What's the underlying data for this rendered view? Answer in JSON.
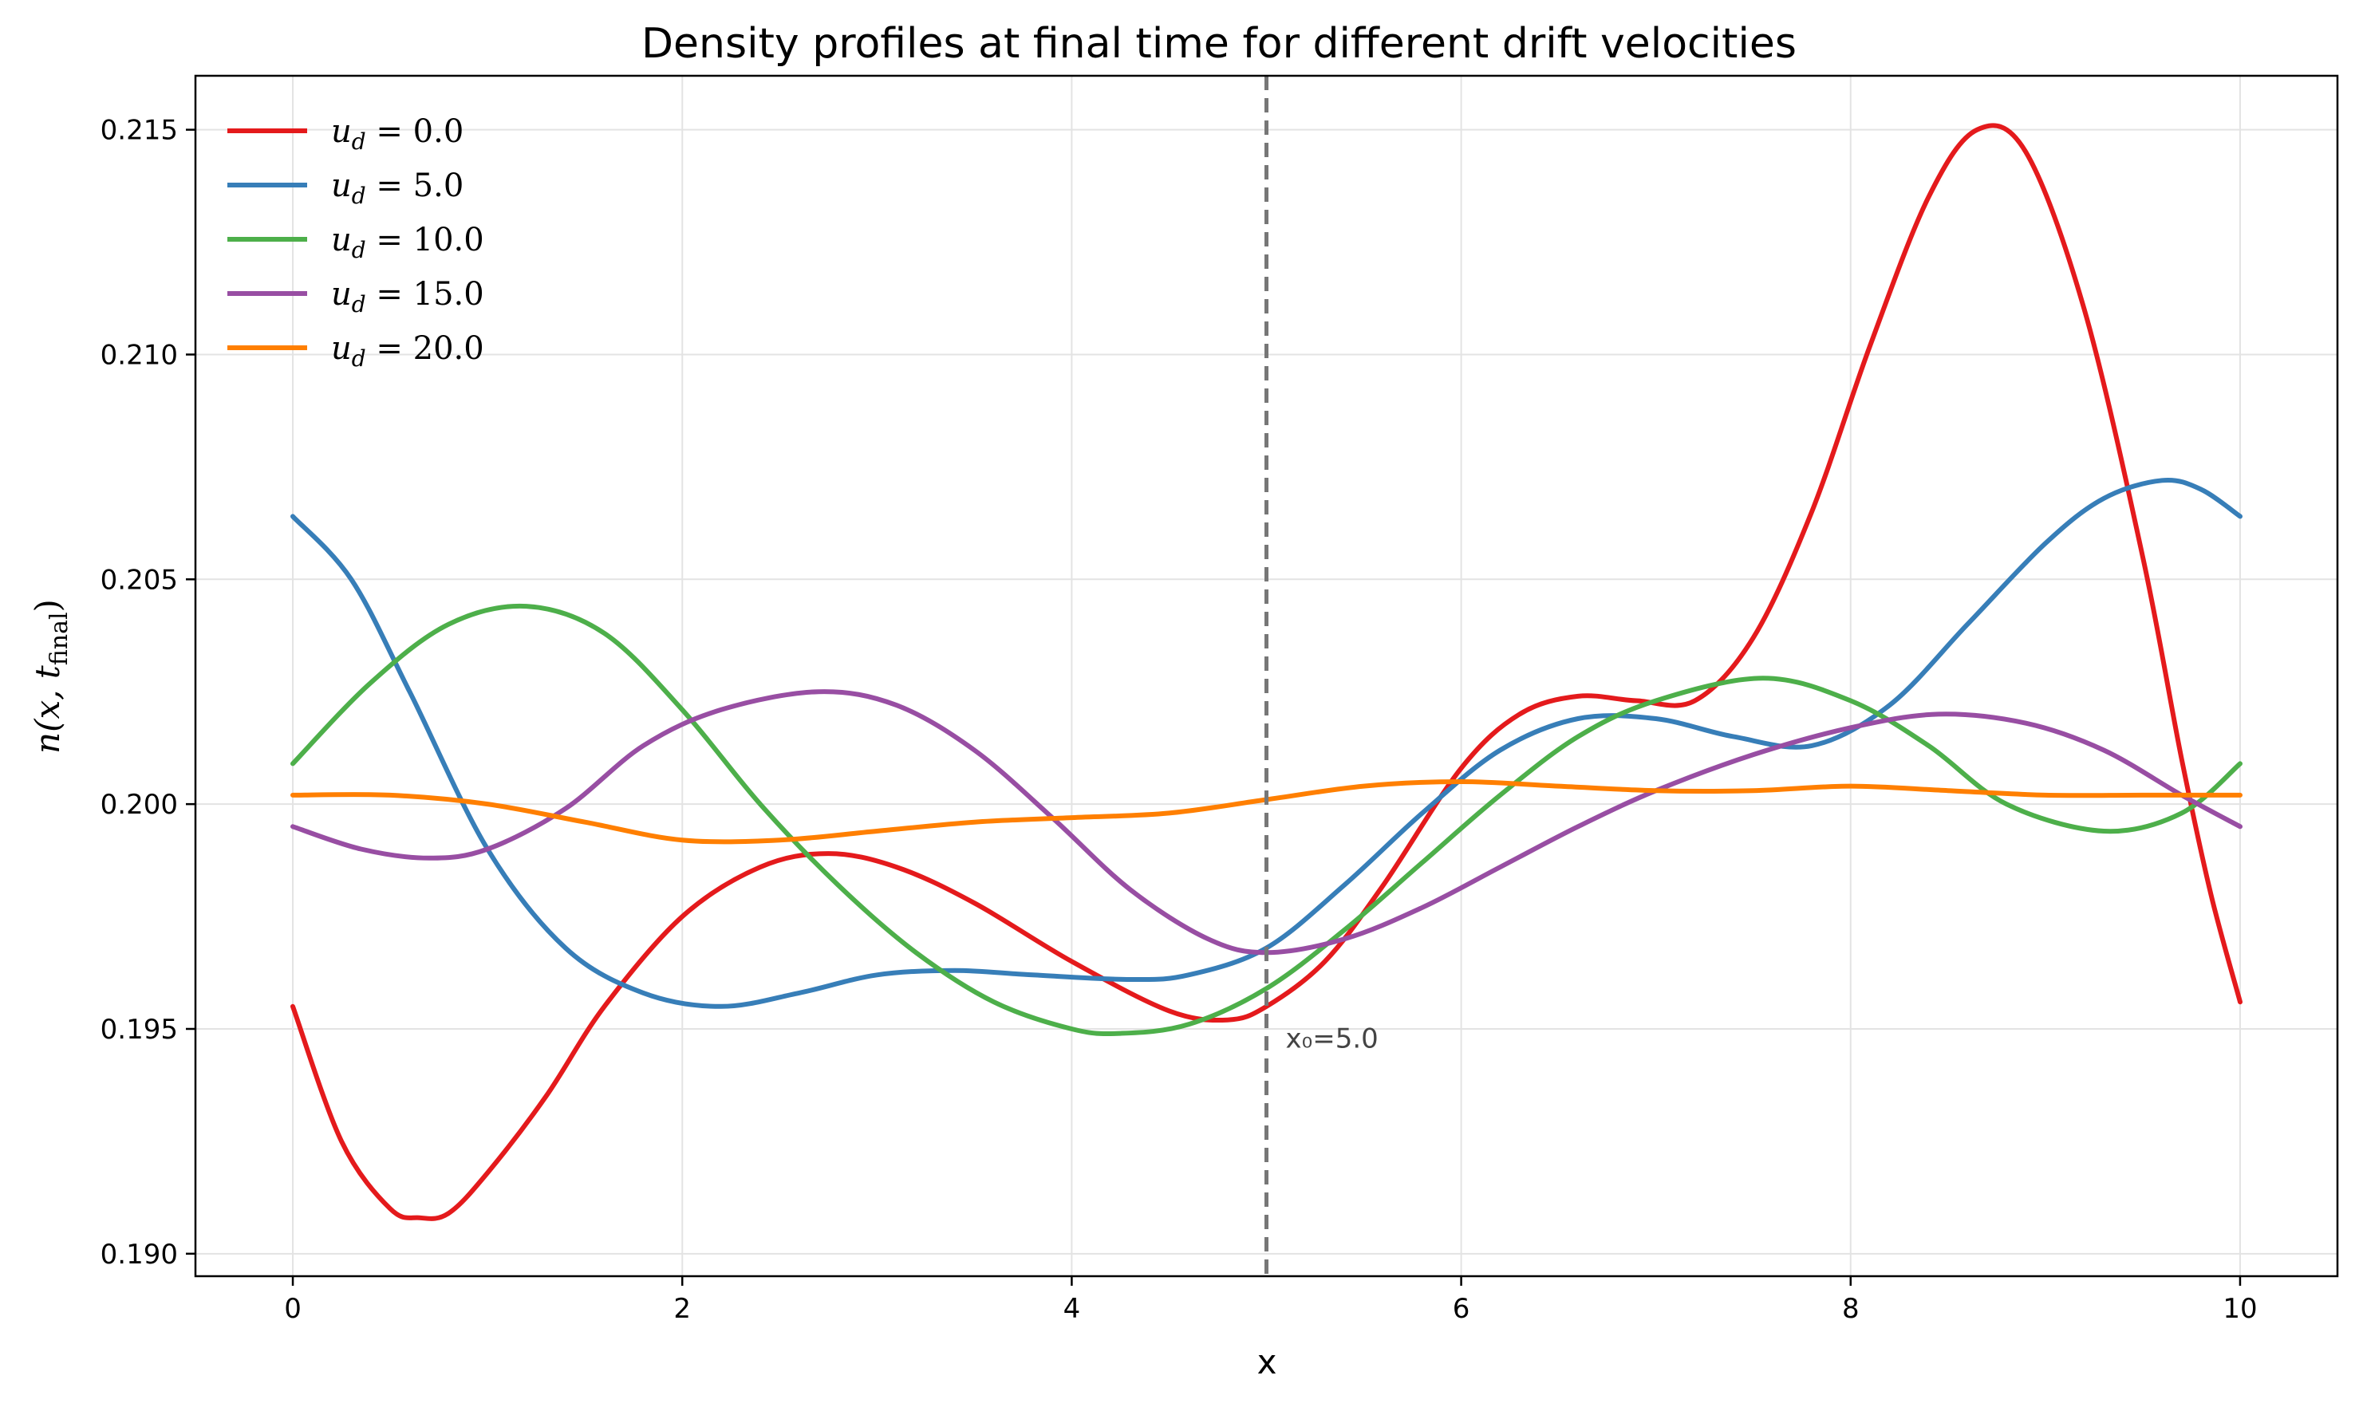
{
  "chart_data": {
    "type": "line",
    "title": "Density profiles at final time for different drift velocities",
    "xlabel": "x",
    "ylabel": "n(x, t_final)",
    "ylabel_parts": {
      "main": "n(x, t",
      "sub": "final",
      "close": ")"
    },
    "xlim": [
      -0.5,
      10.5
    ],
    "ylim": [
      0.1895,
      0.2162
    ],
    "xticks": [
      0,
      2,
      4,
      6,
      8,
      10
    ],
    "xtick_labels": [
      "0",
      "2",
      "4",
      "6",
      "8",
      "10"
    ],
    "yticks": [
      0.19,
      0.195,
      0.2,
      0.205,
      0.21,
      0.215
    ],
    "ytick_labels": [
      "0.190",
      "0.195",
      "0.200",
      "0.205",
      "0.210",
      "0.215"
    ],
    "grid": true,
    "legend_position": "top-left",
    "vline": {
      "x": 5.0,
      "label": "x₀=5.0",
      "color": "#777777",
      "style": "dashed"
    },
    "series": [
      {
        "name": "u_d = 0.0",
        "label_parts": {
          "var": "u",
          "sub": "d",
          "rest": " = 0.0"
        },
        "color": "#e41a1c",
        "x": [
          0,
          0.25,
          0.5,
          0.65,
          0.8,
          1.0,
          1.3,
          1.6,
          2.0,
          2.4,
          2.75,
          3.1,
          3.5,
          4.0,
          4.5,
          4.8,
          5.0,
          5.3,
          5.6,
          6.0,
          6.3,
          6.6,
          6.9,
          7.2,
          7.5,
          7.8,
          8.1,
          8.4,
          8.65,
          8.9,
          9.2,
          9.5,
          9.7,
          9.85,
          10.0
        ],
        "y": [
          0.1955,
          0.1925,
          0.191,
          0.1908,
          0.1909,
          0.1918,
          0.1935,
          0.1955,
          0.1975,
          0.1986,
          0.1989,
          0.1986,
          0.1978,
          0.1965,
          0.1954,
          0.1952,
          0.1955,
          0.1965,
          0.1982,
          0.2008,
          0.202,
          0.2024,
          0.2023,
          0.2023,
          0.2037,
          0.2065,
          0.2102,
          0.2135,
          0.215,
          0.2145,
          0.211,
          0.2055,
          0.201,
          0.198,
          0.1956
        ]
      },
      {
        "name": "u_d = 5.0",
        "label_parts": {
          "var": "u",
          "sub": "d",
          "rest": " = 5.0"
        },
        "color": "#377eb8",
        "x": [
          0,
          0.3,
          0.6,
          1.0,
          1.4,
          1.8,
          2.2,
          2.6,
          3.0,
          3.4,
          3.8,
          4.3,
          4.6,
          5.0,
          5.4,
          5.8,
          6.2,
          6.6,
          7.0,
          7.4,
          7.8,
          8.2,
          8.6,
          9.0,
          9.3,
          9.6,
          9.8,
          10.0
        ],
        "y": [
          0.2064,
          0.205,
          0.2025,
          0.199,
          0.1968,
          0.1958,
          0.1955,
          0.1958,
          0.1962,
          0.1963,
          0.1962,
          0.1961,
          0.1962,
          0.1968,
          0.1982,
          0.1998,
          0.2012,
          0.2019,
          0.2019,
          0.2015,
          0.2013,
          0.2022,
          0.204,
          0.2058,
          0.2068,
          0.2072,
          0.207,
          0.2064
        ]
      },
      {
        "name": "u_d = 10.0",
        "label_parts": {
          "var": "u",
          "sub": "d",
          "rest": " = 10.0"
        },
        "color": "#4daf4a",
        "x": [
          0,
          0.4,
          0.8,
          1.2,
          1.6,
          2.0,
          2.4,
          2.8,
          3.2,
          3.6,
          4.0,
          4.25,
          4.6,
          5.0,
          5.4,
          5.8,
          6.2,
          6.6,
          7.0,
          7.55,
          8.0,
          8.4,
          8.8,
          9.3,
          9.7,
          10.0
        ],
        "y": [
          0.2009,
          0.2027,
          0.204,
          0.2044,
          0.2038,
          0.2021,
          0.2,
          0.1982,
          0.1967,
          0.1956,
          0.195,
          0.1949,
          0.1951,
          0.1959,
          0.1972,
          0.1987,
          0.2002,
          0.2015,
          0.2023,
          0.2028,
          0.2023,
          0.2013,
          0.2,
          0.1994,
          0.1998,
          0.2009
        ]
      },
      {
        "name": "u_d = 15.0",
        "label_parts": {
          "var": "u",
          "sub": "d",
          "rest": " = 15.0"
        },
        "color": "#984ea3",
        "x": [
          0,
          0.35,
          0.7,
          1.0,
          1.4,
          1.8,
          2.2,
          2.7,
          3.1,
          3.5,
          3.9,
          4.3,
          4.7,
          5.0,
          5.4,
          5.8,
          6.2,
          6.6,
          7.0,
          7.5,
          8.0,
          8.45,
          8.9,
          9.3,
          9.7,
          10.0
        ],
        "y": [
          0.1995,
          0.199,
          0.1988,
          0.199,
          0.1999,
          0.2013,
          0.2021,
          0.2025,
          0.2022,
          0.2012,
          0.1997,
          0.1981,
          0.197,
          0.1967,
          0.197,
          0.1977,
          0.1986,
          0.1995,
          0.2003,
          0.2011,
          0.2017,
          0.202,
          0.2018,
          0.2012,
          0.2002,
          0.1995
        ]
      },
      {
        "name": "u_d = 20.0",
        "label_parts": {
          "var": "u",
          "sub": "d",
          "rest": " = 20.0"
        },
        "color": "#ff7f00",
        "x": [
          0,
          0.5,
          1.0,
          1.5,
          2.0,
          2.5,
          3.0,
          3.5,
          4.0,
          4.5,
          5.0,
          5.5,
          6.0,
          6.5,
          7.0,
          7.5,
          8.0,
          8.5,
          9.0,
          9.5,
          10.0
        ],
        "y": [
          0.2002,
          0.2002,
          0.2,
          0.1996,
          0.1992,
          0.1992,
          0.1994,
          0.1996,
          0.1997,
          0.1998,
          0.2001,
          0.2004,
          0.2005,
          0.2004,
          0.2003,
          0.2003,
          0.2004,
          0.2003,
          0.2002,
          0.2002,
          0.2002
        ]
      }
    ]
  }
}
